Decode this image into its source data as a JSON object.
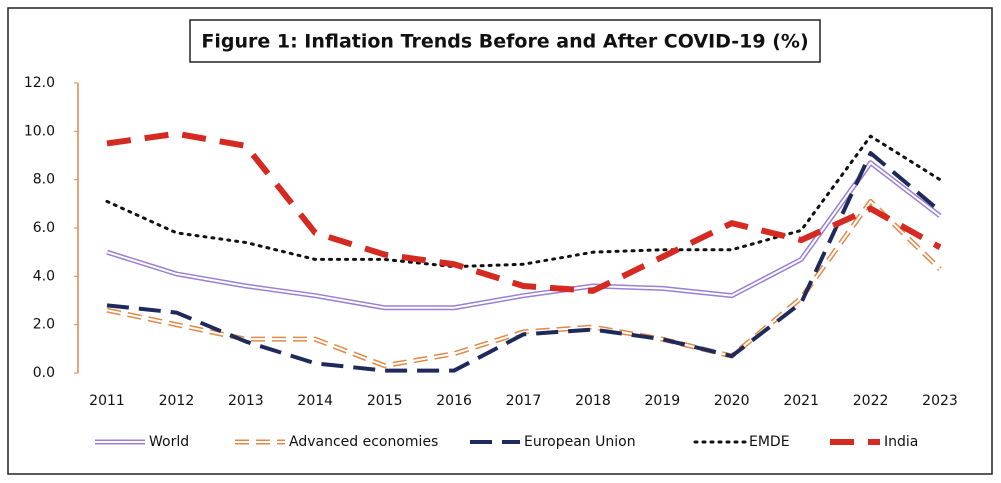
{
  "chart_data": {
    "type": "line",
    "title": "Figure 1: Inflation Trends Before and After COVID-19 (%)",
    "categories": [
      "2011",
      "2012",
      "2013",
      "2014",
      "2015",
      "2016",
      "2017",
      "2018",
      "2019",
      "2020",
      "2021",
      "2022",
      "2023"
    ],
    "series": [
      {
        "name": "World",
        "color": "#9b7fd4",
        "values": [
          5.0,
          4.1,
          3.6,
          3.2,
          2.7,
          2.7,
          3.2,
          3.6,
          3.5,
          3.2,
          4.7,
          8.7,
          6.5
        ]
      },
      {
        "name": "Advanced economies",
        "color": "#e08a4a",
        "values": [
          2.6,
          2.0,
          1.4,
          1.4,
          0.3,
          0.8,
          1.7,
          1.9,
          1.4,
          0.7,
          3.1,
          7.1,
          4.3
        ]
      },
      {
        "name": "European Union",
        "color": "#1f2a5c",
        "values": [
          2.8,
          2.5,
          1.3,
          0.4,
          0.1,
          0.1,
          1.6,
          1.8,
          1.4,
          0.7,
          2.9,
          9.1,
          6.7
        ]
      },
      {
        "name": "EMDE",
        "color": "#111111",
        "values": [
          7.1,
          5.8,
          5.4,
          4.7,
          4.7,
          4.4,
          4.5,
          5.0,
          5.1,
          5.1,
          5.9,
          9.8,
          8.0
        ]
      },
      {
        "name": "India",
        "color": "#d42a22",
        "values": [
          9.5,
          9.9,
          9.4,
          5.8,
          4.9,
          4.5,
          3.6,
          3.4,
          4.8,
          6.2,
          5.5,
          6.8,
          5.2
        ]
      }
    ],
    "ylim": [
      0,
      12
    ],
    "yticks": [
      {
        "value": 0,
        "label": "0.0"
      },
      {
        "value": 2,
        "label": "2.0"
      },
      {
        "value": 4,
        "label": "4.0"
      },
      {
        "value": 6,
        "label": "6.0"
      },
      {
        "value": 8,
        "label": "8.0"
      },
      {
        "value": 10,
        "label": "10.0"
      },
      {
        "value": 12,
        "label": "12.0"
      }
    ],
    "legend": "bottom"
  }
}
